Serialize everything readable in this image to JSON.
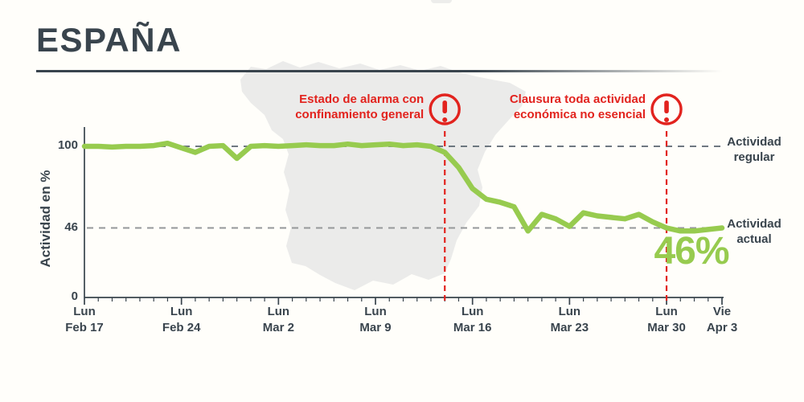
{
  "header": {
    "title": "ESPAÑA"
  },
  "colors": {
    "background": "#fffefa",
    "ink": "#39444d",
    "accent_green": "#97cb4f",
    "alert_red": "#e2231e",
    "grid_dark": "#5b6670",
    "grid_light": "#95989a",
    "map_fill": "#ebebea"
  },
  "chart_data": {
    "type": "line",
    "title": "ESPAÑA",
    "xlabel": "",
    "ylabel": "Actividad en %",
    "ylim": [
      0,
      105
    ],
    "x_frequency": "daily",
    "grid": "dashed horizontal reference lines at 100 and 46",
    "legend_position": "none",
    "y_ticks": [
      {
        "label": "100",
        "value": 100,
        "gridline": true,
        "style": "dark"
      },
      {
        "label": "46",
        "value": 46,
        "gridline": true,
        "style": "light"
      },
      {
        "label": "0",
        "value": 0,
        "gridline": false,
        "style": "dark"
      }
    ],
    "x_ticks": [
      {
        "day": "Lun",
        "date": "Feb 17",
        "index": 0
      },
      {
        "day": "Lun",
        "date": "Feb 24",
        "index": 7
      },
      {
        "day": "Lun",
        "date": "Mar 2",
        "index": 14
      },
      {
        "day": "Lun",
        "date": "Mar 9",
        "index": 21
      },
      {
        "day": "Lun",
        "date": "Mar 16",
        "index": 28
      },
      {
        "day": "Lun",
        "date": "Mar 23",
        "index": 35
      },
      {
        "day": "Lun",
        "date": "Mar 30",
        "index": 42
      },
      {
        "day": "Vie",
        "date": "Apr 3",
        "index": 46
      }
    ],
    "series": [
      {
        "name": "Actividad en %",
        "color": "#97cb4f",
        "values": [
          100,
          100,
          99.5,
          100,
          100,
          100.5,
          102,
          99,
          96,
          100,
          100.5,
          92,
          100,
          100.5,
          100,
          100.5,
          101,
          100.5,
          100.5,
          101.5,
          100.5,
          101,
          101.5,
          100.5,
          101,
          100,
          96,
          86,
          72,
          65,
          63,
          60,
          44,
          55,
          52,
          47,
          56,
          54,
          53,
          52,
          55,
          50,
          46,
          44,
          44,
          45,
          46
        ]
      }
    ],
    "annotations": [
      {
        "line1": "Estado de alarma con",
        "line2": "confinamiento general",
        "day_index": 26,
        "icon": "warning-exclamation",
        "color": "#e2231e"
      },
      {
        "line1": "Clausura toda actividad",
        "line2": "económica no esencial",
        "day_index": 42,
        "icon": "warning-exclamation",
        "color": "#e2231e"
      }
    ],
    "reference_labels": [
      {
        "line1": "Actividad",
        "line2": "regular",
        "value": 100
      },
      {
        "line1": "Actividad",
        "line2": "actual",
        "value": 46
      }
    ],
    "current_value_label": "46%"
  }
}
